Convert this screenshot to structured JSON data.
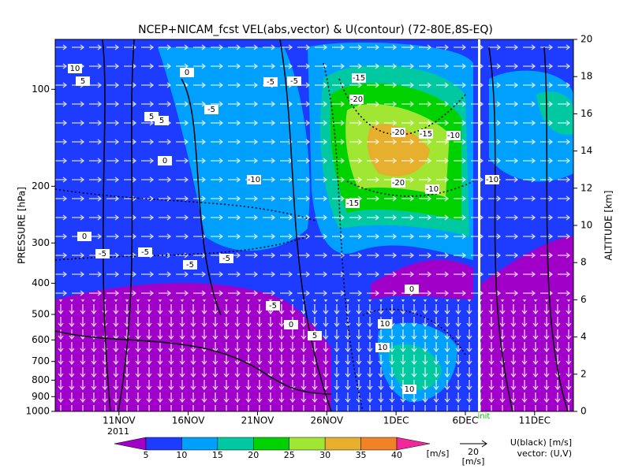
{
  "chart_data": {
    "type": "contour",
    "title": "NCEP+NICAM_fcst VEL(abs,vector) & U(contour)  (72-80E,8S-EQ)",
    "ylabel": "PRESSURE [hPa]",
    "y2label": "ALTITUDE [km]",
    "ylog": true,
    "xlim": [
      6.4,
      43.8
    ],
    "xticks": [
      {
        "value": 11,
        "label": "11NOV"
      },
      {
        "value": 16,
        "label": "16NOV"
      },
      {
        "value": 21,
        "label": "21NOV"
      },
      {
        "value": 26,
        "label": "26NOV"
      },
      {
        "value": 31,
        "label": "1DEC"
      },
      {
        "value": 36,
        "label": "6DEC"
      },
      {
        "value": 41,
        "label": "11DEC"
      }
    ],
    "year": "2011",
    "ylim": [
      1000,
      70
    ],
    "yticks": [
      100,
      200,
      300,
      400,
      500,
      600,
      700,
      800,
      900,
      1000
    ],
    "y2lim": [
      0,
      20
    ],
    "y2ticks": [
      0,
      2,
      4,
      6,
      8,
      10,
      12,
      14,
      16,
      18,
      20
    ],
    "init_line": {
      "x": 37,
      "label": "init"
    },
    "colorbar": {
      "levels": [
        5,
        10,
        15,
        20,
        25,
        30,
        35,
        40
      ],
      "colors": [
        "#a000c8",
        "#1e3cff",
        "#00a0ff",
        "#00c8a0",
        "#00d200",
        "#a0e632",
        "#e6af2d",
        "#f08228",
        "#f0289c"
      ],
      "label": "[m/s]"
    },
    "vector_ref": {
      "value": 20,
      "unit": "[m/s]"
    },
    "legend_lines": [
      "U(black) [m/s]",
      "vector: (U,V)"
    ],
    "contour_labels": [
      "10",
      "5",
      "0",
      "-5",
      "-5",
      "5",
      "5",
      "-5",
      "0",
      "-10",
      "-15",
      "-20",
      "-20",
      "-15",
      "-10",
      "-20",
      "-10",
      "-15",
      "-10",
      "-5",
      "0",
      "-5",
      "-5",
      "-5",
      "-5",
      "10",
      "10",
      "10",
      "0",
      "5",
      "0"
    ]
  }
}
